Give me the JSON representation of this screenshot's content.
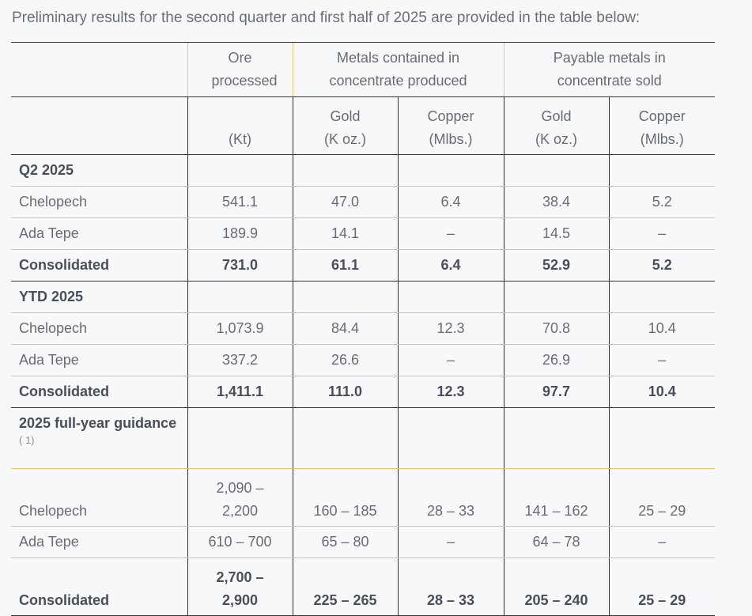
{
  "intro": "Preliminary results for the second quarter and first half of 2025 are provided in the table below:",
  "header": {
    "ore_processed": "Ore processed",
    "metals_contained": "Metals contained in concentrate produced",
    "payable_metals": "Payable metals in concentrate sold",
    "units": {
      "ore": "(Kt)",
      "gold_produced_name": "Gold",
      "gold_produced_unit": "(K oz.)",
      "copper_produced_name": "Copper",
      "copper_produced_unit": "(Mlbs.)",
      "gold_sold_name": "Gold",
      "gold_sold_unit": "(K oz.)",
      "copper_sold_name": "Copper",
      "copper_sold_unit": "(Mlbs.)"
    }
  },
  "sections": {
    "q2": {
      "title": "Q2 2025",
      "chelopech": [
        "Chelopech",
        "541.1",
        "47.0",
        "6.4",
        "38.4",
        "5.2"
      ],
      "ada_tepe": [
        "Ada Tepe",
        "189.9",
        "14.1",
        "–",
        "14.5",
        "–"
      ],
      "consolidated": [
        "Consolidated",
        "731.0",
        "61.1",
        "6.4",
        "52.9",
        "5.2"
      ]
    },
    "ytd": {
      "title": "YTD 2025",
      "chelopech": [
        "Chelopech",
        "1,073.9",
        "84.4",
        "12.3",
        "70.8",
        "10.4"
      ],
      "ada_tepe": [
        "Ada Tepe",
        "337.2",
        "26.6",
        "–",
        "26.9",
        "–"
      ],
      "consolidated": [
        "Consolidated",
        "1,411.1",
        "111.0",
        "12.3",
        "97.7",
        "10.4"
      ]
    },
    "guidance": {
      "title": "2025 full-year guidance",
      "note": "( 1)",
      "chelopech": [
        "Chelopech",
        "2,090 – 2,200",
        "160 – 185",
        "28 – 33",
        "141 – 162",
        "25 – 29"
      ],
      "ada_tepe": [
        "Ada Tepe",
        "610 – 700",
        "65 – 80",
        "–",
        "64 – 78",
        "–"
      ],
      "consolidated": [
        "Consolidated",
        "2,700 – 2,900",
        "225 – 265",
        "28 – 33",
        "205 – 240",
        "25 – 29"
      ]
    }
  }
}
